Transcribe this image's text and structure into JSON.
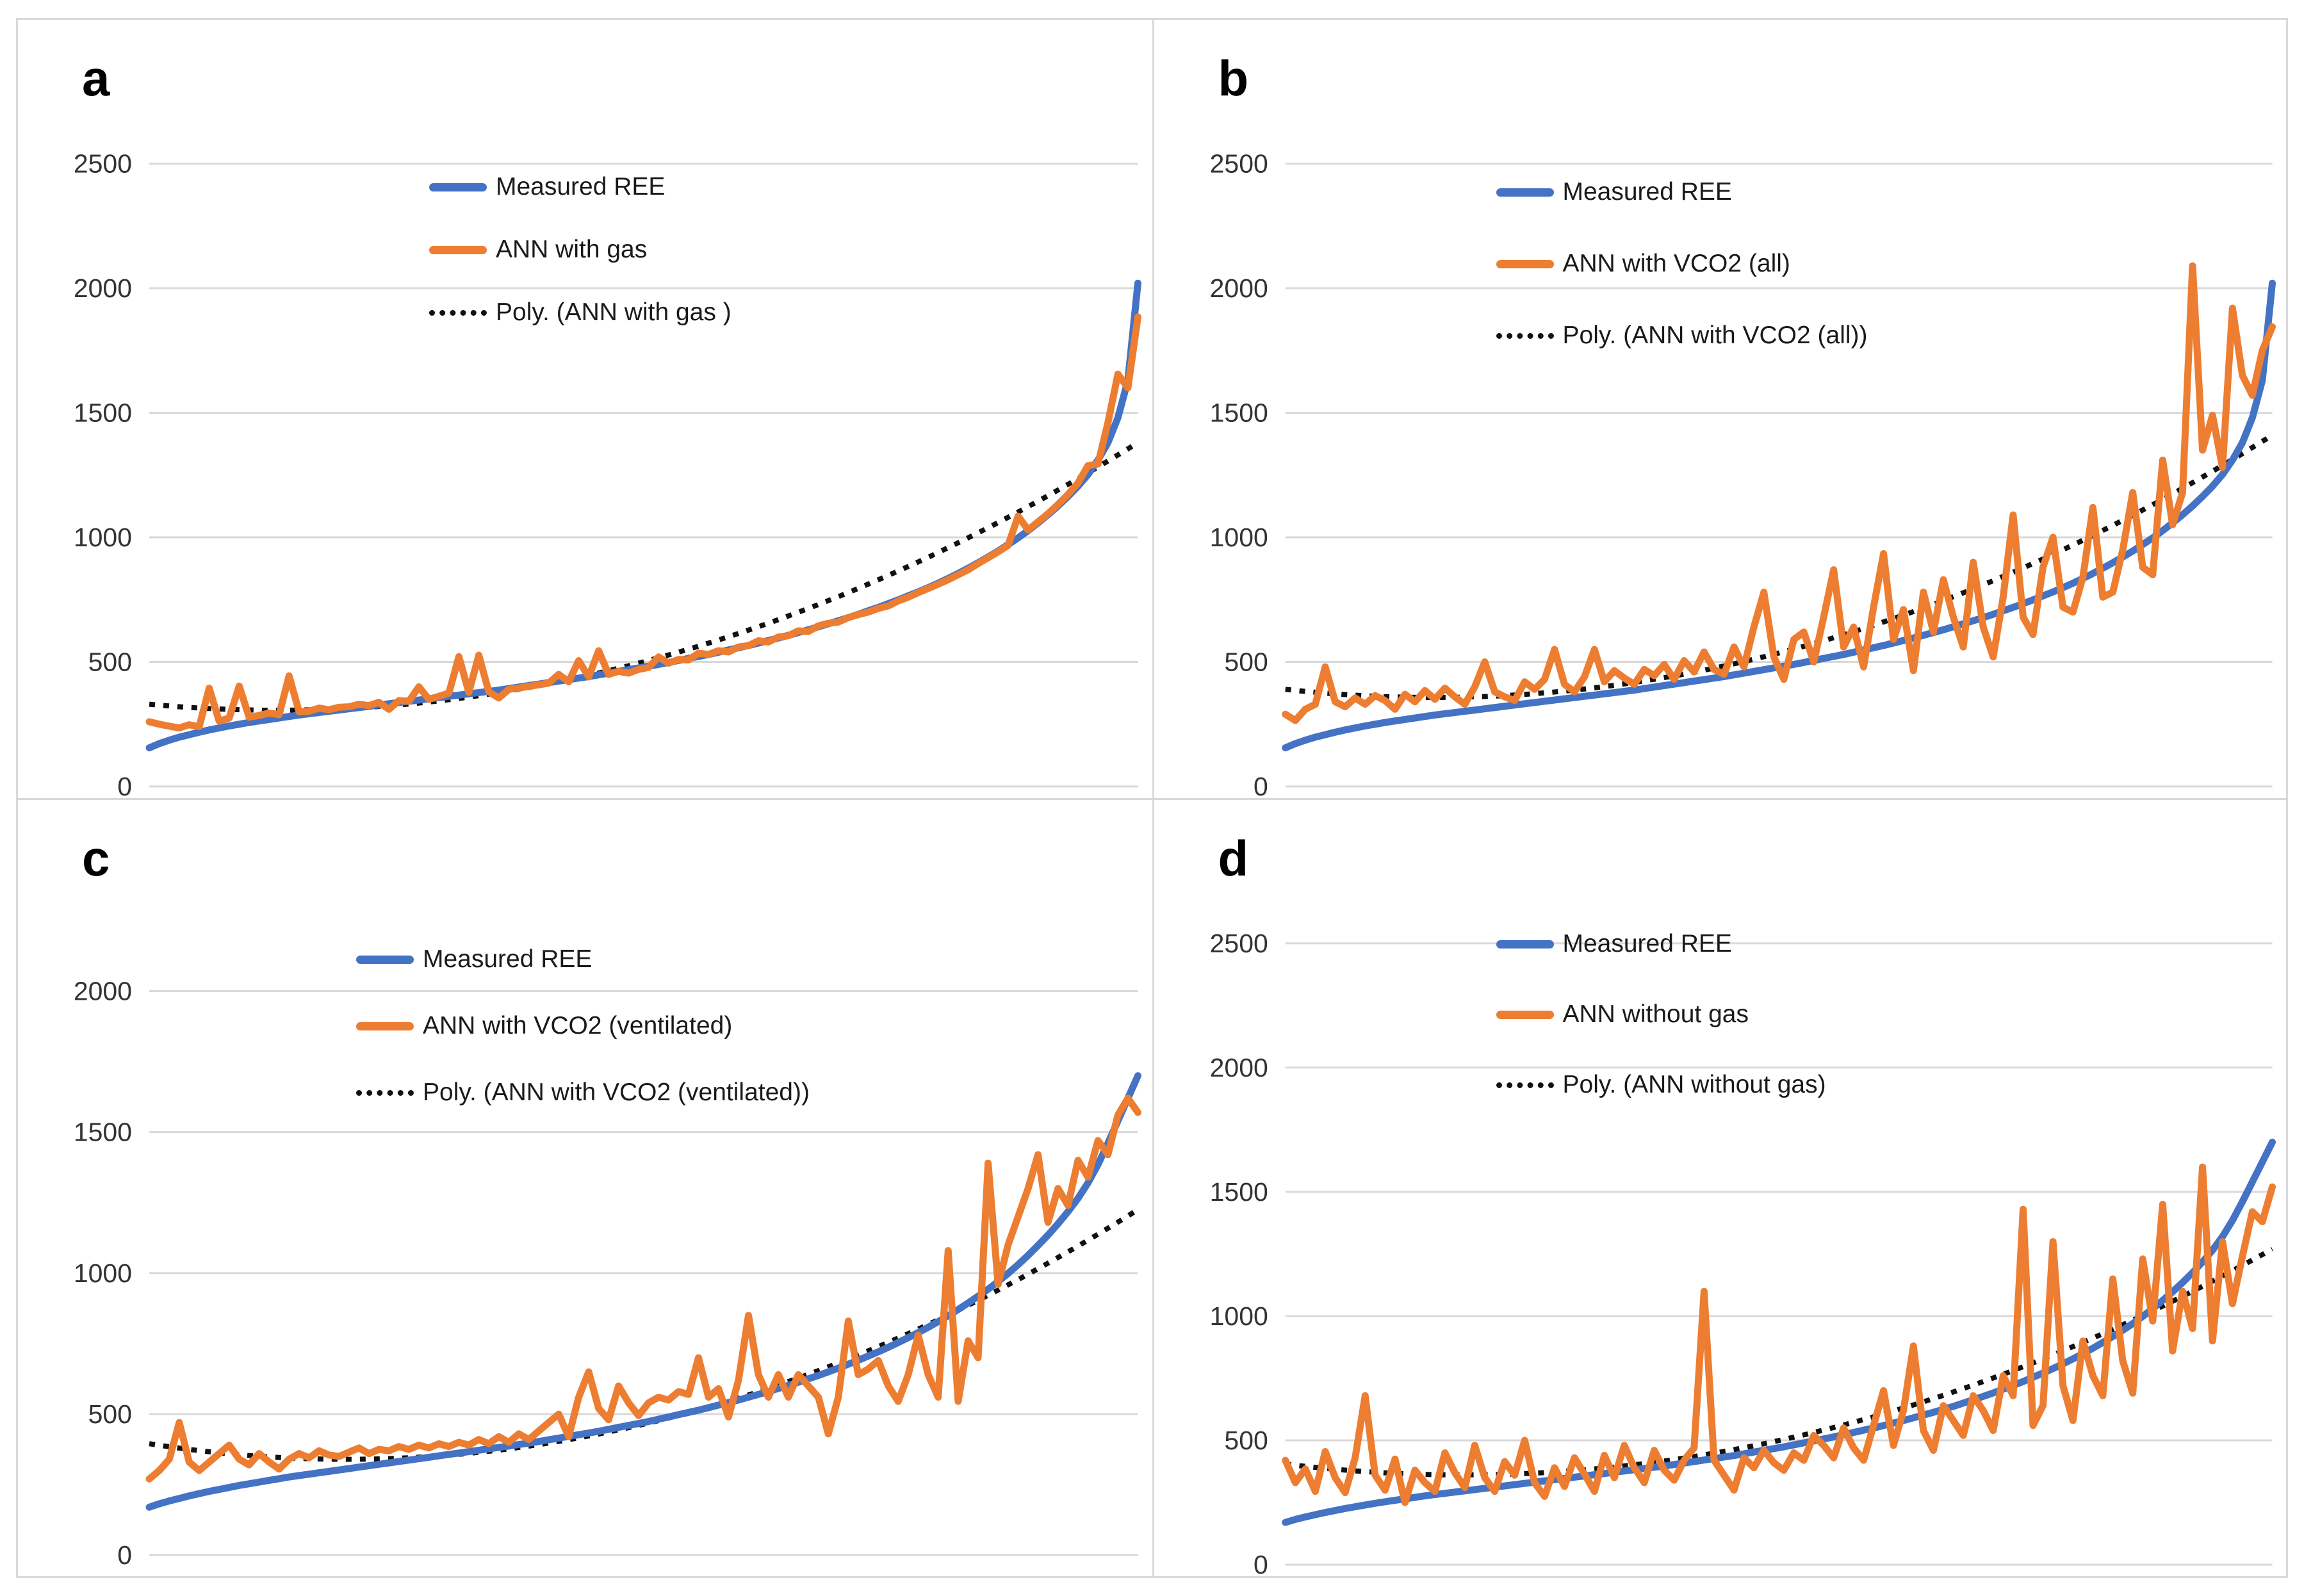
{
  "figure": {
    "description_text": "",
    "accent_colors": {
      "measured_blue": "#4472C4",
      "ann_orange": "#ED7D31",
      "poly_dotted": "#111111",
      "gridline_gray": "#D9D9D9"
    }
  },
  "chart_data": [
    {
      "panel": "a",
      "type": "line",
      "title": "",
      "xlabel": "",
      "ylabel": "",
      "x_axis": {
        "labels_visible": false,
        "points": 100
      },
      "ylim": [
        0,
        2500
      ],
      "yticks": [
        2500,
        2000,
        1500,
        1000,
        500,
        0
      ],
      "grid": true,
      "legend_position": "top-center",
      "series": [
        {
          "name": "Measured REE",
          "color": "#4472C4",
          "style": "solid",
          "values": [
            155,
            172,
            186,
            198,
            208,
            218,
            227,
            235,
            243,
            250,
            257,
            263,
            269,
            275,
            281,
            287,
            292,
            297,
            302,
            307,
            312,
            317,
            322,
            327,
            332,
            337,
            342,
            347,
            352,
            357,
            362,
            367,
            372,
            377,
            382,
            387,
            393,
            399,
            405,
            411,
            417,
            423,
            429,
            435,
            441,
            448,
            455,
            462,
            469,
            476,
            483,
            490,
            498,
            506,
            514,
            522,
            530,
            539,
            548,
            557,
            566,
            576,
            586,
            596,
            607,
            618,
            629,
            641,
            653,
            665,
            678,
            691,
            705,
            719,
            734,
            749,
            765,
            781,
            798,
            816,
            835,
            855,
            876,
            898,
            921,
            945,
            971,
            998,
            1027,
            1058,
            1091,
            1126,
            1164,
            1205,
            1252,
            1310,
            1380,
            1480,
            1630,
            2020
          ]
        },
        {
          "name": "ANN with gas",
          "color": "#ED7D31",
          "style": "solid",
          "values": [
            260,
            250,
            242,
            235,
            248,
            240,
            395,
            262,
            275,
            403,
            278,
            285,
            295,
            288,
            444,
            300,
            302,
            315,
            308,
            318,
            320,
            330,
            325,
            338,
            310,
            345,
            342,
            400,
            350,
            362,
            375,
            521,
            378,
            527,
            380,
            355,
            390,
            395,
            402,
            408,
            415,
            450,
            420,
            505,
            440,
            545,
            450,
            462,
            455,
            470,
            478,
            520,
            495,
            510,
            508,
            535,
            530,
            545,
            540,
            560,
            565,
            585,
            580,
            600,
            605,
            625,
            622,
            645,
            655,
            660,
            678,
            690,
            700,
            715,
            725,
            745,
            760,
            778,
            795,
            812,
            830,
            850,
            870,
            895,
            918,
            942,
            968,
            1085,
            1030,
            1062,
            1095,
            1132,
            1172,
            1218,
            1288,
            1295,
            1460,
            1655,
            1600,
            1885
          ]
        },
        {
          "name": "Poly. (ANN with gas )",
          "color": "#111111",
          "style": "dotted",
          "trend": {
            "y0": 330,
            "b": -369,
            "c": 1419
          }
        }
      ]
    },
    {
      "panel": "b",
      "type": "line",
      "title": "",
      "xlabel": "",
      "ylabel": "",
      "x_axis": {
        "labels_visible": false,
        "points": 100
      },
      "ylim": [
        0,
        2500
      ],
      "yticks": [
        2500,
        2000,
        1500,
        1000,
        500,
        0
      ],
      "grid": true,
      "legend_position": "top-center",
      "series": [
        {
          "name": "Measured REE",
          "color": "#4472C4",
          "style": "solid",
          "values": [
            155,
            172,
            186,
            198,
            208,
            218,
            227,
            235,
            243,
            250,
            257,
            263,
            269,
            275,
            281,
            287,
            292,
            297,
            302,
            307,
            312,
            317,
            322,
            327,
            332,
            337,
            342,
            347,
            352,
            357,
            362,
            367,
            372,
            377,
            382,
            387,
            393,
            399,
            405,
            411,
            417,
            423,
            429,
            435,
            441,
            448,
            455,
            462,
            469,
            476,
            483,
            490,
            498,
            506,
            514,
            522,
            530,
            539,
            548,
            557,
            566,
            576,
            586,
            596,
            607,
            618,
            629,
            641,
            653,
            665,
            678,
            691,
            705,
            719,
            734,
            749,
            765,
            781,
            798,
            816,
            835,
            855,
            876,
            898,
            921,
            945,
            971,
            998,
            1027,
            1058,
            1091,
            1126,
            1164,
            1205,
            1252,
            1310,
            1380,
            1480,
            1630,
            2020
          ]
        },
        {
          "name": "ANN with VCO2 (all)",
          "color": "#ED7D31",
          "style": "solid",
          "values": [
            290,
            265,
            310,
            330,
            480,
            340,
            320,
            355,
            330,
            365,
            345,
            310,
            370,
            340,
            385,
            350,
            395,
            360,
            330,
            400,
            500,
            380,
            360,
            345,
            420,
            390,
            430,
            550,
            410,
            380,
            440,
            550,
            420,
            465,
            435,
            410,
            470,
            445,
            490,
            430,
            505,
            460,
            540,
            470,
            450,
            560,
            480,
            640,
            780,
            520,
            430,
            590,
            620,
            500,
            680,
            870,
            560,
            640,
            480,
            720,
            935,
            590,
            710,
            465,
            780,
            620,
            830,
            680,
            560,
            900,
            640,
            520,
            760,
            1090,
            680,
            610,
            880,
            1000,
            720,
            700,
            840,
            1120,
            760,
            780,
            950,
            1180,
            880,
            850,
            1310,
            1050,
            1180,
            2090,
            1350,
            1490,
            1280,
            1920,
            1650,
            1570,
            1750,
            1845
          ]
        },
        {
          "name": "Poly. (ANN with VCO2 (all))",
          "color": "#111111",
          "style": "dotted",
          "trend": {
            "y0": 390,
            "b": -437,
            "c": 1457
          }
        }
      ]
    },
    {
      "panel": "c",
      "type": "line",
      "title": "",
      "xlabel": "",
      "ylabel": "",
      "x_axis": {
        "labels_visible": false,
        "points": 100
      },
      "ylim": [
        0,
        2000
      ],
      "yticks": [
        2000,
        1500,
        1000,
        500,
        0
      ],
      "grid": true,
      "legend_position": "top-center",
      "series": [
        {
          "name": "Measured REE",
          "color": "#4472C4",
          "style": "solid",
          "values": [
            170,
            182,
            192,
            201,
            210,
            218,
            226,
            233,
            240,
            247,
            253,
            259,
            265,
            271,
            277,
            282,
            287,
            292,
            297,
            302,
            307,
            312,
            317,
            322,
            327,
            332,
            337,
            342,
            347,
            352,
            357,
            362,
            367,
            372,
            377,
            382,
            387,
            392,
            397,
            403,
            409,
            415,
            421,
            427,
            433,
            439,
            446,
            453,
            460,
            467,
            474,
            482,
            490,
            498,
            506,
            514,
            523,
            532,
            541,
            550,
            560,
            570,
            580,
            591,
            602,
            613,
            625,
            637,
            650,
            663,
            677,
            691,
            706,
            721,
            737,
            754,
            771,
            789,
            808,
            828,
            849,
            871,
            894,
            918,
            943,
            970,
            999,
            1030,
            1063,
            1098,
            1135,
            1175,
            1218,
            1265,
            1320,
            1385,
            1460,
            1540,
            1620,
            1700
          ]
        },
        {
          "name": "ANN with VCO2 (ventilated)",
          "color": "#ED7D31",
          "style": "solid",
          "values": [
            270,
            300,
            340,
            470,
            330,
            300,
            330,
            360,
            390,
            340,
            320,
            360,
            330,
            305,
            340,
            360,
            345,
            370,
            355,
            350,
            365,
            380,
            360,
            375,
            370,
            385,
            375,
            390,
            380,
            395,
            385,
            400,
            390,
            410,
            395,
            420,
            400,
            430,
            410,
            440,
            470,
            500,
            420,
            560,
            650,
            520,
            480,
            600,
            540,
            495,
            540,
            560,
            550,
            580,
            570,
            700,
            560,
            590,
            490,
            620,
            850,
            640,
            560,
            640,
            560,
            640,
            600,
            560,
            430,
            560,
            830,
            640,
            660,
            690,
            600,
            545,
            640,
            780,
            640,
            560,
            1080,
            545,
            760,
            700,
            1390,
            960,
            1100,
            1200,
            1300,
            1420,
            1180,
            1300,
            1240,
            1400,
            1340,
            1470,
            1420,
            1560,
            1620,
            1570
          ]
        },
        {
          "name": "Poly. (ANN with VCO2 (ventilated))",
          "color": "#111111",
          "style": "dotted",
          "trend": {
            "y0": 395,
            "b": -553,
            "c": 1383
          }
        }
      ]
    },
    {
      "panel": "d",
      "type": "line",
      "title": "",
      "xlabel": "",
      "ylabel": "",
      "x_axis": {
        "labels_visible": false,
        "points": 100
      },
      "ylim": [
        0,
        2500
      ],
      "yticks": [
        2500,
        2000,
        1500,
        1000,
        500,
        0
      ],
      "grid": true,
      "legend_position": "top-center",
      "series": [
        {
          "name": "Measured REE",
          "color": "#4472C4",
          "style": "solid",
          "values": [
            170,
            182,
            192,
            201,
            210,
            218,
            226,
            233,
            240,
            247,
            253,
            259,
            265,
            271,
            277,
            282,
            287,
            292,
            297,
            302,
            307,
            312,
            317,
            322,
            327,
            332,
            337,
            342,
            347,
            352,
            357,
            362,
            367,
            372,
            377,
            382,
            387,
            392,
            397,
            403,
            409,
            415,
            421,
            427,
            433,
            439,
            446,
            453,
            460,
            467,
            474,
            482,
            490,
            498,
            506,
            514,
            523,
            532,
            541,
            550,
            560,
            570,
            580,
            591,
            602,
            613,
            625,
            637,
            650,
            663,
            677,
            691,
            706,
            721,
            737,
            754,
            771,
            789,
            808,
            828,
            849,
            871,
            894,
            918,
            943,
            970,
            999,
            1030,
            1063,
            1098,
            1135,
            1175,
            1218,
            1265,
            1320,
            1385,
            1460,
            1540,
            1620,
            1700
          ]
        },
        {
          "name": "ANN without gas",
          "color": "#ED7D31",
          "style": "solid",
          "values": [
            420,
            330,
            385,
            295,
            455,
            350,
            290,
            430,
            680,
            360,
            300,
            425,
            250,
            380,
            330,
            295,
            450,
            370,
            310,
            480,
            350,
            295,
            415,
            360,
            500,
            330,
            275,
            390,
            315,
            430,
            365,
            295,
            440,
            350,
            480,
            390,
            330,
            460,
            380,
            340,
            420,
            470,
            1100,
            420,
            360,
            300,
            430,
            390,
            460,
            410,
            380,
            450,
            420,
            520,
            480,
            430,
            550,
            470,
            420,
            560,
            700,
            480,
            620,
            880,
            540,
            460,
            640,
            580,
            520,
            680,
            620,
            540,
            760,
            680,
            1430,
            560,
            640,
            1300,
            720,
            580,
            900,
            760,
            680,
            1150,
            820,
            690,
            1230,
            980,
            1450,
            860,
            1100,
            950,
            1600,
            900,
            1300,
            1050,
            1240,
            1420,
            1380,
            1520
          ]
        },
        {
          "name": "Poly. (ANN without gas)",
          "color": "#111111",
          "style": "dotted",
          "trend": {
            "y0": 405,
            "b": -487,
            "c": 1352
          }
        }
      ]
    }
  ]
}
